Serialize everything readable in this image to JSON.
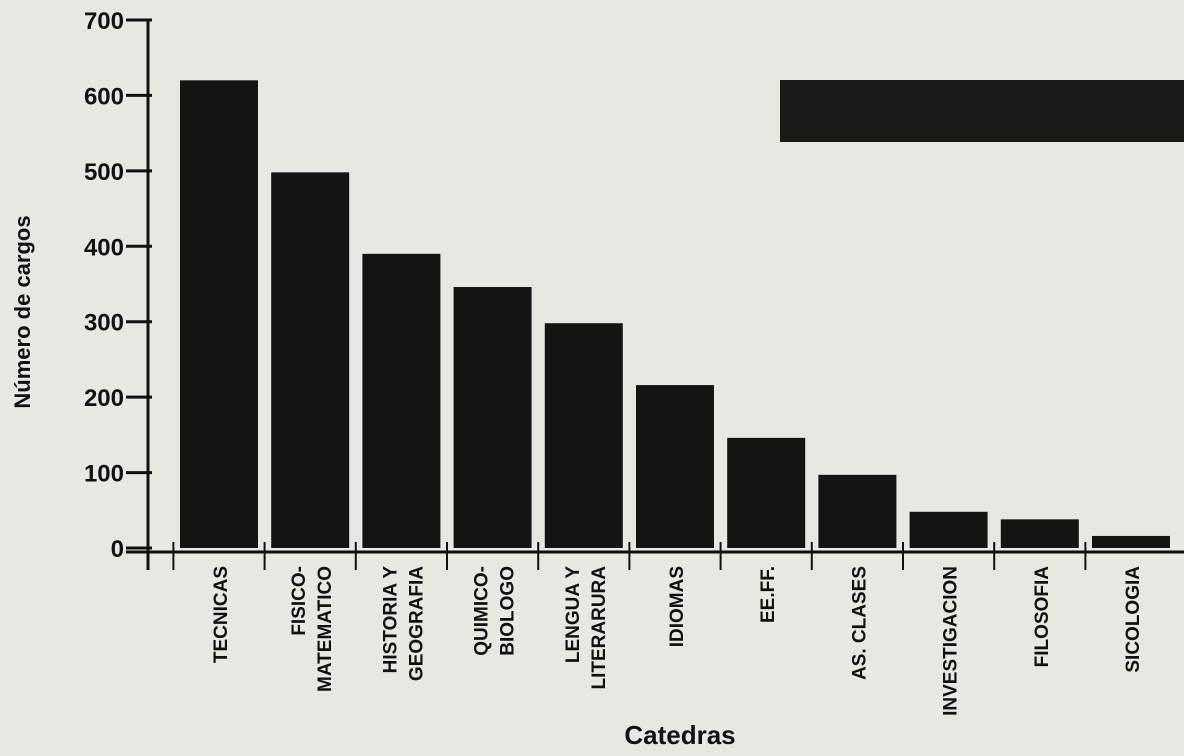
{
  "chart_data": {
    "type": "bar",
    "title": "",
    "xlabel": "Catedras",
    "ylabel": "Número de cargos",
    "ylim": [
      0,
      700
    ],
    "yticks": [
      "0",
      "100",
      "200",
      "300",
      "400",
      "500",
      "600",
      "700"
    ],
    "grid": false,
    "categories": [
      [
        "TECNICAS"
      ],
      [
        "FISICO-",
        "MATEMATICO"
      ],
      [
        "HISTORIA Y",
        "GEOGRAFIA"
      ],
      [
        "QUIMICO-",
        "BIOLOGO"
      ],
      [
        "LENGUA Y",
        "LITERARURA"
      ],
      [
        "IDIOMAS"
      ],
      [
        "EE.FF."
      ],
      [
        "AS.  CLASES"
      ],
      [
        "INVESTIGACION"
      ],
      [
        "FILOSOFIA"
      ],
      [
        "SICOLOGIA"
      ]
    ],
    "values": [
      620,
      498,
      390,
      346,
      298,
      216,
      146,
      97,
      48,
      38,
      16
    ],
    "colors": {
      "bar": "#141414",
      "axis": "#111111",
      "background": "#e9e7e2"
    }
  }
}
